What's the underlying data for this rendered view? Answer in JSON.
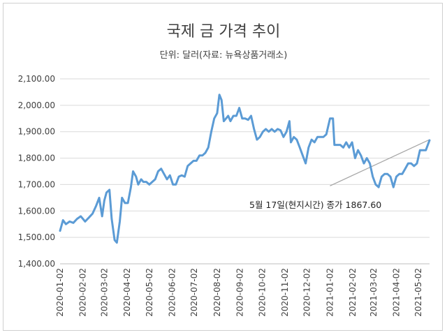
{
  "chart_data": {
    "type": "line",
    "title": "국제 금 가격 추이",
    "subtitle": "단위: 달러(자료: 뉴욕상품거래소)",
    "xlabel": "",
    "ylabel": "",
    "ylim": [
      1400,
      2100
    ],
    "y_ticks": [
      "1,400.00",
      "1,500.00",
      "1,600.00",
      "1,700.00",
      "1,800.00",
      "1,900.00",
      "2,000.00",
      "2,100.00"
    ],
    "x_ticks": [
      "2020-01-02",
      "2020-02-02",
      "2020-03-02",
      "2020-04-02",
      "2020-05-02",
      "2020-06-02",
      "2020-07-02",
      "2020-08-02",
      "2020-09-02",
      "2020-10-02",
      "2020-11-02",
      "2020-12-02",
      "2021-01-02",
      "2021-02-02",
      "2021-03-02",
      "2021-04-02",
      "2021-05-02"
    ],
    "grid": true,
    "legend": "none",
    "series": [
      {
        "color": "#5b9bd5",
        "x": [
          "2020-01-02",
          "2020-01-06",
          "2020-01-10",
          "2020-01-15",
          "2020-01-20",
          "2020-01-25",
          "2020-01-30",
          "2020-02-05",
          "2020-02-10",
          "2020-02-15",
          "2020-02-20",
          "2020-02-24",
          "2020-02-28",
          "2020-03-02",
          "2020-03-05",
          "2020-03-09",
          "2020-03-12",
          "2020-03-16",
          "2020-03-19",
          "2020-03-23",
          "2020-03-26",
          "2020-03-30",
          "2020-04-03",
          "2020-04-07",
          "2020-04-10",
          "2020-04-14",
          "2020-04-17",
          "2020-04-21",
          "2020-04-24",
          "2020-04-28",
          "2020-05-02",
          "2020-05-06",
          "2020-05-10",
          "2020-05-14",
          "2020-05-18",
          "2020-05-22",
          "2020-05-26",
          "2020-05-30",
          "2020-06-03",
          "2020-06-07",
          "2020-06-11",
          "2020-06-15",
          "2020-06-19",
          "2020-06-23",
          "2020-06-27",
          "2020-07-01",
          "2020-07-05",
          "2020-07-09",
          "2020-07-13",
          "2020-07-17",
          "2020-07-21",
          "2020-07-25",
          "2020-07-29",
          "2020-08-02",
          "2020-08-05",
          "2020-08-08",
          "2020-08-11",
          "2020-08-14",
          "2020-08-17",
          "2020-08-20",
          "2020-08-24",
          "2020-08-28",
          "2020-09-01",
          "2020-09-05",
          "2020-09-09",
          "2020-09-13",
          "2020-09-17",
          "2020-09-21",
          "2020-09-25",
          "2020-09-29",
          "2020-10-03",
          "2020-10-07",
          "2020-10-11",
          "2020-10-15",
          "2020-10-19",
          "2020-10-23",
          "2020-10-27",
          "2020-10-31",
          "2020-11-04",
          "2020-11-08",
          "2020-11-10",
          "2020-11-14",
          "2020-11-18",
          "2020-11-22",
          "2020-11-26",
          "2020-11-30",
          "2020-12-04",
          "2020-12-08",
          "2020-12-12",
          "2020-12-16",
          "2020-12-20",
          "2020-12-24",
          "2020-12-28",
          "2021-01-02",
          "2021-01-06",
          "2021-01-08",
          "2021-01-12",
          "2021-01-16",
          "2021-01-20",
          "2021-01-24",
          "2021-01-28",
          "2021-02-01",
          "2021-02-05",
          "2021-02-09",
          "2021-02-13",
          "2021-02-17",
          "2021-02-21",
          "2021-02-25",
          "2021-03-01",
          "2021-03-05",
          "2021-03-09",
          "2021-03-13",
          "2021-03-17",
          "2021-03-21",
          "2021-03-25",
          "2021-03-29",
          "2021-04-02",
          "2021-04-06",
          "2021-04-10",
          "2021-04-14",
          "2021-04-18",
          "2021-04-22",
          "2021-04-26",
          "2021-04-30",
          "2021-05-04",
          "2021-05-08",
          "2021-05-12",
          "2021-05-17"
        ],
        "values": [
          1525,
          1565,
          1550,
          1560,
          1555,
          1570,
          1580,
          1560,
          1575,
          1590,
          1620,
          1650,
          1580,
          1640,
          1670,
          1680,
          1570,
          1490,
          1480,
          1560,
          1650,
          1630,
          1630,
          1690,
          1750,
          1730,
          1700,
          1720,
          1710,
          1710,
          1700,
          1710,
          1720,
          1750,
          1760,
          1740,
          1720,
          1735,
          1700,
          1700,
          1730,
          1735,
          1730,
          1770,
          1780,
          1790,
          1790,
          1810,
          1810,
          1820,
          1840,
          1900,
          1950,
          1970,
          2040,
          2020,
          1940,
          1950,
          1960,
          1940,
          1960,
          1960,
          1990,
          1950,
          1950,
          1945,
          1960,
          1910,
          1870,
          1880,
          1900,
          1910,
          1900,
          1910,
          1900,
          1910,
          1905,
          1880,
          1900,
          1940,
          1860,
          1880,
          1870,
          1840,
          1810,
          1780,
          1840,
          1870,
          1860,
          1880,
          1880,
          1880,
          1890,
          1950,
          1950,
          1850,
          1850,
          1850,
          1840,
          1860,
          1840,
          1860,
          1800,
          1830,
          1810,
          1780,
          1800,
          1780,
          1730,
          1700,
          1690,
          1730,
          1740,
          1740,
          1730,
          1690,
          1730,
          1740,
          1740,
          1760,
          1780,
          1780,
          1770,
          1780,
          1830,
          1830,
          1830,
          1867.6
        ]
      }
    ],
    "annotation": "5월 17일(현지시간) 종가 1867.60",
    "trendline": {
      "from": [
        "2021-01-02",
        1695
      ],
      "to": [
        "2021-05-17",
        1870
      ]
    }
  }
}
